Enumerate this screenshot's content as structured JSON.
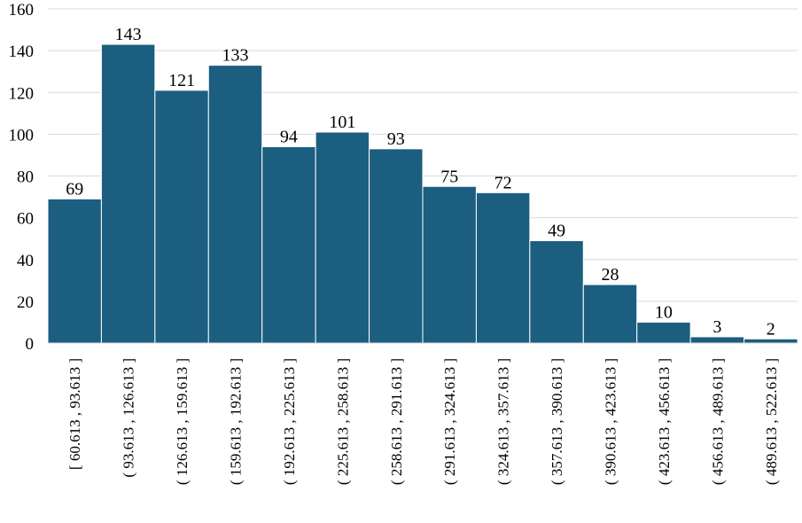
{
  "chart_data": {
    "type": "bar",
    "title": "",
    "xlabel": "",
    "ylabel": "",
    "ylim": [
      0,
      160
    ],
    "y_ticks": [
      "0",
      "20",
      "40",
      "60",
      "80",
      "100",
      "120",
      "140",
      "160"
    ],
    "grid": true,
    "legend": "none",
    "bar_color": "#1B5E80",
    "categories": [
      "[ 60.613 ,  93.613 ]",
      "( 93.613 ,  126.613 ]",
      "( 126.613 ,  159.613 ]",
      "( 159.613 ,  192.613 ]",
      "( 192.613 ,  225.613 ]",
      "( 225.613 ,  258.613 ]",
      "( 258.613 ,  291.613 ]",
      "( 291.613 ,  324.613 ]",
      "( 324.613 ,  357.613 ]",
      "( 357.613 ,  390.613 ]",
      "( 390.613 ,  423.613 ]",
      "( 423.613 ,  456.613 ]",
      "( 456.613 ,  489.613 ]",
      "( 489.613 ,  522.613 ]"
    ],
    "values": [
      69,
      143,
      121,
      133,
      94,
      101,
      93,
      75,
      72,
      49,
      28,
      10,
      3,
      2
    ]
  }
}
